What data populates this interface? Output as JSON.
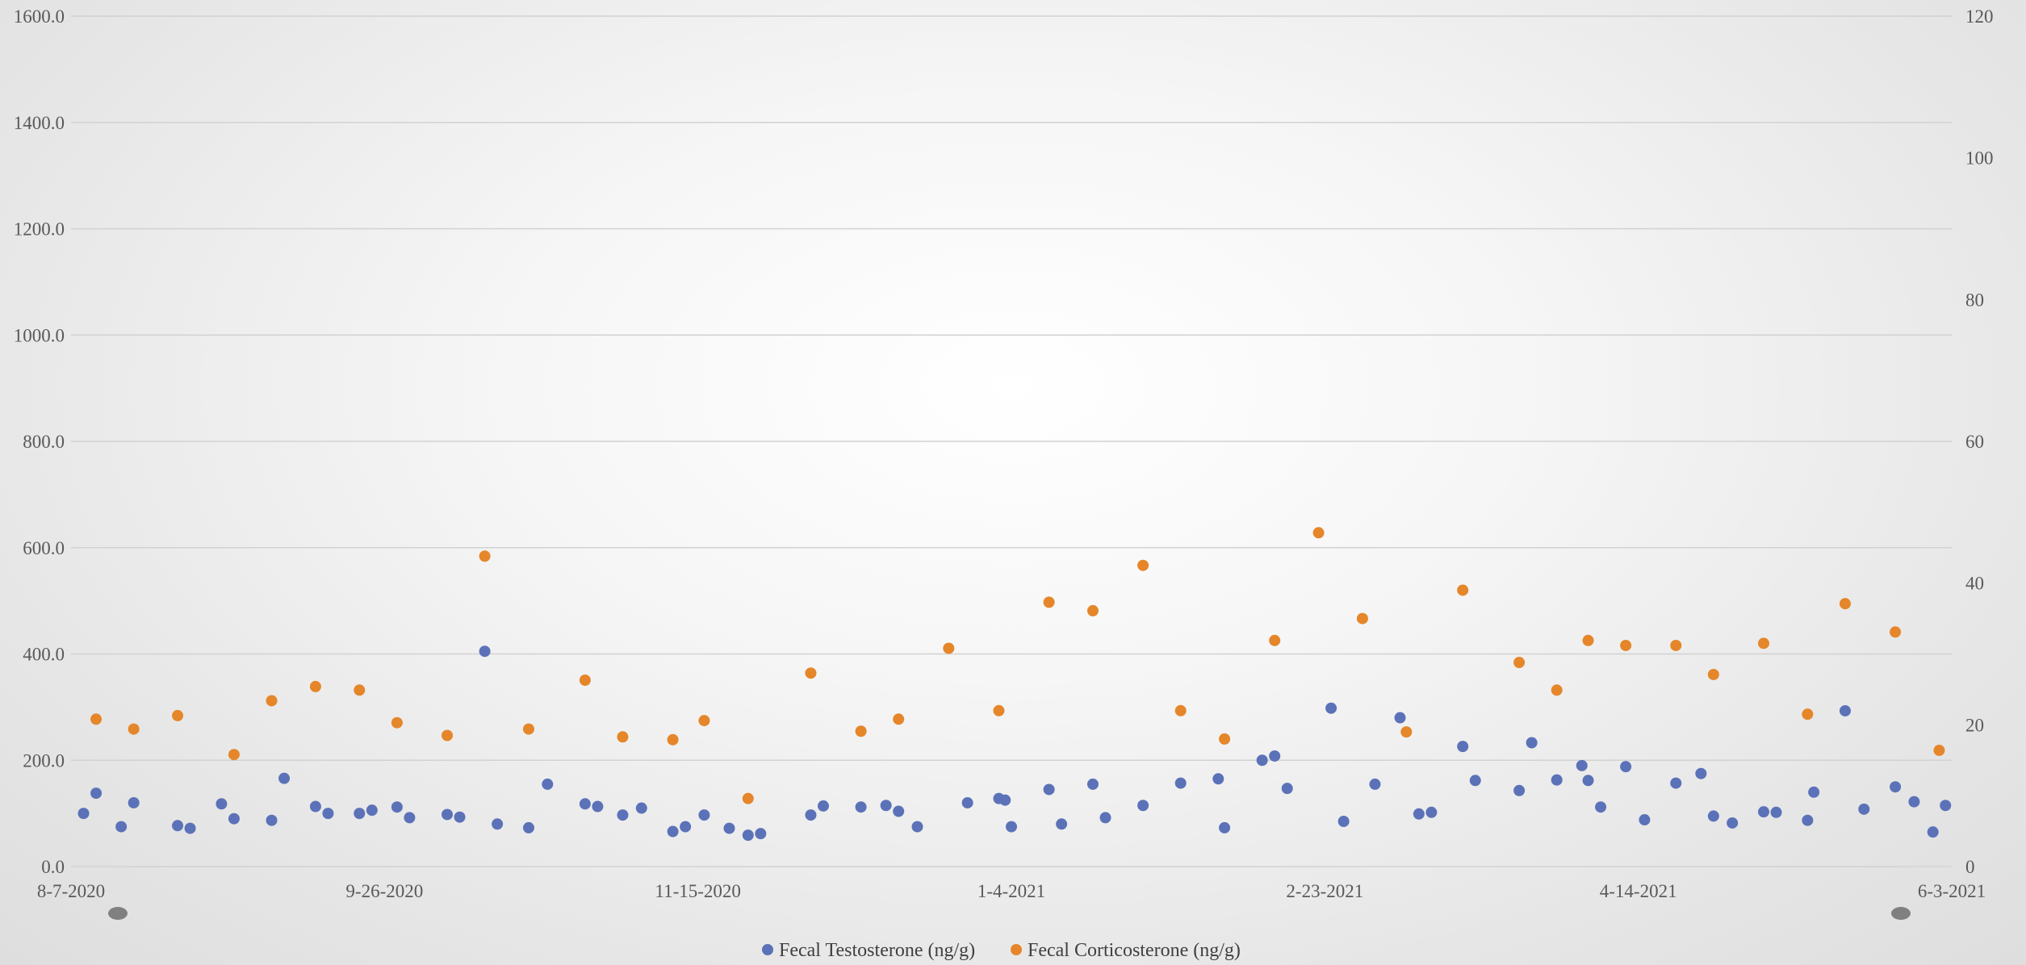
{
  "chart_data": {
    "type": "scatter",
    "title": "",
    "xlabel": "",
    "ylabel": "",
    "y2label": "",
    "x_ticks": [
      "8-7-2020",
      "9-26-2020",
      "11-15-2020",
      "1-4-2021",
      "2-23-2021",
      "4-14-2021",
      "6-3-2021"
    ],
    "x_range": [
      "2020-08-07",
      "2021-06-03"
    ],
    "y_left": {
      "min": 0,
      "max": 1600,
      "step": 200,
      "ticks": [
        "0.0",
        "200.0",
        "400.0",
        "600.0",
        "800.0",
        "1000.0",
        "1200.0",
        "1400.0",
        "1600.0"
      ]
    },
    "y_right": {
      "min": 0,
      "max": 120,
      "step": 20,
      "ticks": [
        "0",
        "20",
        "40",
        "60",
        "80",
        "100",
        "120"
      ]
    },
    "grid": true,
    "legend_position": "bottom",
    "series": [
      {
        "name": "Fecal Testosterone (ng/g)",
        "axis": "left",
        "color": "#5b72b8",
        "points": [
          [
            "2020-08-09",
            100
          ],
          [
            "2020-08-11",
            138
          ],
          [
            "2020-08-15",
            75
          ],
          [
            "2020-08-17",
            120
          ],
          [
            "2020-08-24",
            77
          ],
          [
            "2020-08-26",
            72
          ],
          [
            "2020-08-31",
            118
          ],
          [
            "2020-09-02",
            90
          ],
          [
            "2020-09-08",
            87
          ],
          [
            "2020-09-10",
            166
          ],
          [
            "2020-09-15",
            113
          ],
          [
            "2020-09-17",
            100
          ],
          [
            "2020-09-22",
            100
          ],
          [
            "2020-09-24",
            106
          ],
          [
            "2020-09-28",
            112
          ],
          [
            "2020-09-30",
            92
          ],
          [
            "2020-10-06",
            98
          ],
          [
            "2020-10-08",
            93
          ],
          [
            "2020-10-12",
            405
          ],
          [
            "2020-10-14",
            80
          ],
          [
            "2020-10-19",
            73
          ],
          [
            "2020-10-22",
            155
          ],
          [
            "2020-10-28",
            118
          ],
          [
            "2020-10-30",
            113
          ],
          [
            "2020-11-03",
            97
          ],
          [
            "2020-11-06",
            110
          ],
          [
            "2020-11-11",
            66
          ],
          [
            "2020-11-13",
            75
          ],
          [
            "2020-11-16",
            97
          ],
          [
            "2020-11-20",
            72
          ],
          [
            "2020-11-23",
            59
          ],
          [
            "2020-11-25",
            62
          ],
          [
            "2020-12-03",
            97
          ],
          [
            "2020-12-05",
            114
          ],
          [
            "2020-12-11",
            112
          ],
          [
            "2020-12-15",
            115
          ],
          [
            "2020-12-17",
            104
          ],
          [
            "2020-12-20",
            75
          ],
          [
            "2020-12-28",
            120
          ],
          [
            "2021-01-02",
            128
          ],
          [
            "2021-01-03",
            125
          ],
          [
            "2021-01-04",
            75
          ],
          [
            "2021-01-10",
            145
          ],
          [
            "2021-01-12",
            80
          ],
          [
            "2021-01-17",
            155
          ],
          [
            "2021-01-19",
            92
          ],
          [
            "2021-01-25",
            115
          ],
          [
            "2021-01-31",
            157
          ],
          [
            "2021-02-06",
            165
          ],
          [
            "2021-02-07",
            73
          ],
          [
            "2021-02-13",
            200
          ],
          [
            "2021-02-15",
            208
          ],
          [
            "2021-02-17",
            147
          ],
          [
            "2021-02-24",
            298
          ],
          [
            "2021-02-26",
            85
          ],
          [
            "2021-03-03",
            155
          ],
          [
            "2021-03-07",
            280
          ],
          [
            "2021-03-10",
            99
          ],
          [
            "2021-03-12",
            102
          ],
          [
            "2021-03-17",
            226
          ],
          [
            "2021-03-19",
            162
          ],
          [
            "2021-03-26",
            143
          ],
          [
            "2021-03-28",
            233
          ],
          [
            "2021-04-01",
            163
          ],
          [
            "2021-04-05",
            190
          ],
          [
            "2021-04-06",
            162
          ],
          [
            "2021-04-08",
            112
          ],
          [
            "2021-04-12",
            188
          ],
          [
            "2021-04-15",
            88
          ],
          [
            "2021-04-20",
            157
          ],
          [
            "2021-04-24",
            175
          ],
          [
            "2021-04-26",
            95
          ],
          [
            "2021-04-29",
            82
          ],
          [
            "2021-05-04",
            103
          ],
          [
            "2021-05-06",
            102
          ],
          [
            "2021-05-11",
            87
          ],
          [
            "2021-05-12",
            140
          ],
          [
            "2021-05-17",
            293
          ],
          [
            "2021-05-20",
            108
          ],
          [
            "2021-05-25",
            150
          ],
          [
            "2021-05-28",
            122
          ],
          [
            "2021-05-31",
            65
          ],
          [
            "2021-06-02",
            115
          ]
        ]
      },
      {
        "name": "Fecal Corticosterone (ng/g)",
        "axis": "right",
        "color": "#e5862a",
        "points": [
          [
            "2020-08-11",
            20.8
          ],
          [
            "2020-08-17",
            19.4
          ],
          [
            "2020-08-24",
            21.3
          ],
          [
            "2020-09-02",
            15.8
          ],
          [
            "2020-09-08",
            23.4
          ],
          [
            "2020-09-15",
            25.4
          ],
          [
            "2020-09-22",
            24.9
          ],
          [
            "2020-09-28",
            20.3
          ],
          [
            "2020-10-06",
            18.5
          ],
          [
            "2020-10-12",
            43.8
          ],
          [
            "2020-10-19",
            19.4
          ],
          [
            "2020-10-28",
            26.3
          ],
          [
            "2020-11-03",
            18.3
          ],
          [
            "2020-11-11",
            17.9
          ],
          [
            "2020-11-16",
            20.6
          ],
          [
            "2020-11-23",
            9.6
          ],
          [
            "2020-12-03",
            27.3
          ],
          [
            "2020-12-11",
            19.1
          ],
          [
            "2020-12-17",
            20.8
          ],
          [
            "2020-12-25",
            30.8
          ],
          [
            "2021-01-02",
            22.0
          ],
          [
            "2021-01-10",
            37.3
          ],
          [
            "2021-01-17",
            36.1
          ],
          [
            "2021-01-25",
            42.5
          ],
          [
            "2021-01-31",
            22.0
          ],
          [
            "2021-02-07",
            18.0
          ],
          [
            "2021-02-15",
            31.9
          ],
          [
            "2021-02-22",
            47.1
          ],
          [
            "2021-03-01",
            35.0
          ],
          [
            "2021-03-08",
            19.0
          ],
          [
            "2021-03-17",
            39.0
          ],
          [
            "2021-03-26",
            28.8
          ],
          [
            "2021-04-01",
            24.9
          ],
          [
            "2021-04-06",
            31.9
          ],
          [
            "2021-04-12",
            31.2
          ],
          [
            "2021-04-20",
            31.2
          ],
          [
            "2021-04-26",
            27.1
          ],
          [
            "2021-05-04",
            31.5
          ],
          [
            "2021-05-11",
            21.5
          ],
          [
            "2021-05-17",
            37.1
          ],
          [
            "2021-05-25",
            33.1
          ],
          [
            "2021-06-01",
            16.4
          ]
        ]
      }
    ]
  },
  "colors": {
    "grid": "#d2d2d2",
    "axis_text": "#595959",
    "handle": "#808080"
  }
}
